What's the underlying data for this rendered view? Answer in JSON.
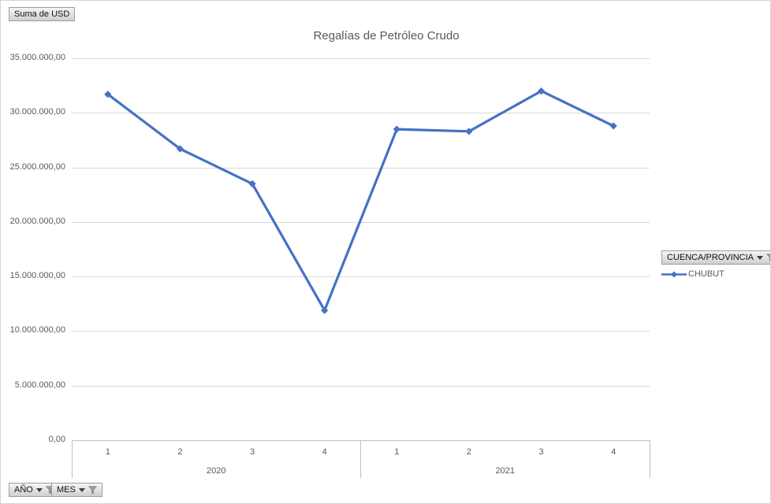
{
  "title": "Regalías de Petróleo Crudo",
  "buttons": {
    "value_field": "Suma de USD",
    "legend_field": "CUENCA/PROVINCIA",
    "axis_fields": [
      "AÑO",
      "MES"
    ]
  },
  "legend": {
    "series_label": "CHUBUT"
  },
  "colors": {
    "series": "#4472C4",
    "gridline": "#d9d9d9",
    "axis": "#bfbfbf",
    "text": "#595959"
  },
  "chart_data": {
    "type": "line",
    "title": "Regalías de Petróleo Crudo",
    "categories": [
      "1",
      "2",
      "3",
      "4",
      "1",
      "2",
      "3",
      "4"
    ],
    "category_groups": [
      {
        "label": "2020",
        "span": 4
      },
      {
        "label": "2021",
        "span": 4
      }
    ],
    "series": [
      {
        "name": "CHUBUT",
        "color": "#4472C4",
        "values": [
          31700000,
          26700000,
          23500000,
          11900000,
          28500000,
          28300000,
          32000000,
          28800000
        ]
      }
    ],
    "ylim": [
      0,
      35000000
    ],
    "ytick_step": 5000000,
    "ytick_labels": [
      "0,00",
      "5.000.000,00",
      "10.000.000,00",
      "15.000.000,00",
      "20.000.000,00",
      "25.000.000,00",
      "30.000.000,00",
      "35.000.000,00"
    ],
    "grid": true,
    "legend_position": "right",
    "marker": "diamond"
  }
}
